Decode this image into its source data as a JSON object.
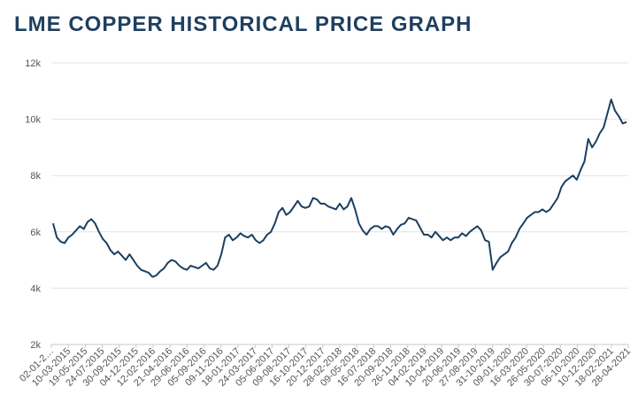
{
  "title": "LME COPPER HISTORICAL PRICE GRAPH",
  "chart_data": {
    "type": "line",
    "title": "LME COPPER HISTORICAL PRICE GRAPH",
    "xlabel": "",
    "ylabel": "",
    "ylim": [
      2000,
      12000
    ],
    "yticks": [
      2000,
      4000,
      6000,
      8000,
      10000,
      12000
    ],
    "ytick_labels": [
      "2k",
      "4k",
      "6k",
      "8k",
      "10k",
      "12k"
    ],
    "grid": true,
    "legend": "none",
    "line_color": "#1c3f61",
    "x_tick_labels": [
      "02-01-2…",
      "10-03-2015",
      "19-05-2015",
      "24-07-2015",
      "30-09-2015",
      "04-12-2015",
      "12-02-2016",
      "21-04-2016",
      "29-06-2016",
      "05-09-2016",
      "09-11-2016",
      "18-01-2017",
      "24-03-2017",
      "05-06-2017",
      "09-08-2017",
      "16-10-2017",
      "20-12-2017",
      "28-02-2018",
      "09-05-2018",
      "16-07-2018",
      "20-09-2018",
      "26-11-2018",
      "04-02-2019",
      "10-04-2019",
      "20-06-2019",
      "27-08-2019",
      "31-10-2019",
      "09-01-2020",
      "16-03-2020",
      "26-05-2020",
      "30-07-2020",
      "06-10-2020",
      "10-12-2020",
      "18-02-2021",
      "28-04-2021"
    ],
    "series": [
      {
        "name": "LME Copper",
        "values": [
          6300,
          5800,
          5650,
          5600,
          5800,
          5900,
          6050,
          6200,
          6100,
          6350,
          6450,
          6300,
          6000,
          5750,
          5600,
          5350,
          5200,
          5300,
          5150,
          5000,
          5200,
          5000,
          4800,
          4650,
          4600,
          4550,
          4400,
          4450,
          4600,
          4700,
          4900,
          5000,
          4950,
          4800,
          4700,
          4650,
          4800,
          4750,
          4700,
          4800,
          4900,
          4700,
          4650,
          4800,
          5200,
          5800,
          5900,
          5700,
          5800,
          5950,
          5850,
          5800,
          5900,
          5700,
          5600,
          5700,
          5900,
          6000,
          6300,
          6700,
          6850,
          6600,
          6700,
          6900,
          7100,
          6900,
          6850,
          6900,
          7200,
          7150,
          7000,
          7000,
          6900,
          6850,
          6800,
          7000,
          6800,
          6900,
          7200,
          6800,
          6300,
          6050,
          5900,
          6100,
          6200,
          6200,
          6100,
          6200,
          6150,
          5900,
          6100,
          6250,
          6300,
          6500,
          6450,
          6400,
          6150,
          5900,
          5900,
          5800,
          6000,
          5850,
          5700,
          5800,
          5700,
          5800,
          5800,
          5950,
          5850,
          6000,
          6100,
          6200,
          6050,
          5700,
          5650,
          4650,
          4900,
          5100,
          5200,
          5300,
          5600,
          5800,
          6100,
          6300,
          6500,
          6600,
          6700,
          6700,
          6800,
          6700,
          6800,
          7000,
          7200,
          7600,
          7800,
          7900,
          8000,
          7850,
          8200,
          8500,
          9300,
          9000,
          9200,
          9500,
          9700,
          10200,
          10700,
          10300,
          10100,
          9850,
          9900
        ]
      }
    ]
  }
}
